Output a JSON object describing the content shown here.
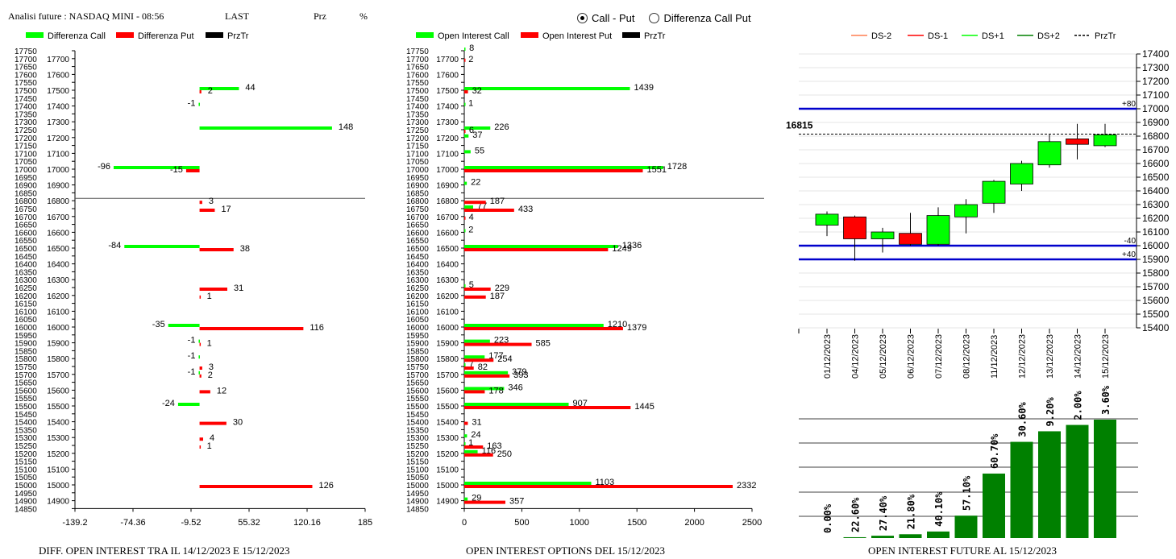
{
  "header": {
    "title": "Analisi future : NASDAQ MINI - 08:56",
    "last_label": "LAST",
    "prz_label": "Prz",
    "pct_label": "%"
  },
  "mode": {
    "options": [
      "Call - Put",
      "Differenza Call Put"
    ],
    "selected": 0
  },
  "colors": {
    "green": "#00ff00",
    "red": "#ff0000",
    "dark_green": "#008000",
    "blue": "#0000cc",
    "black": "#000000",
    "orange": "#ff7f50"
  },
  "chart_data": [
    {
      "type": "bar",
      "orientation": "horizontal",
      "title": "DIFF. OPEN INTEREST TRA IL 14/12/2023 E 15/12/2023",
      "legend": [
        "Differenza Call",
        "Differenza Put",
        "PrzTr"
      ],
      "strikes": [
        17750,
        17700,
        17650,
        17600,
        17550,
        17500,
        17450,
        17400,
        17350,
        17300,
        17250,
        17200,
        17150,
        17100,
        17050,
        17000,
        16950,
        16900,
        16850,
        16800,
        16750,
        16700,
        16650,
        16600,
        16550,
        16500,
        16450,
        16400,
        16350,
        16300,
        16250,
        16200,
        16150,
        16100,
        16050,
        16000,
        15950,
        15900,
        15850,
        15800,
        15750,
        15700,
        15650,
        15600,
        15550,
        15500,
        15450,
        15400,
        15350,
        15300,
        15250,
        15200,
        15150,
        15100,
        15050,
        15000,
        14950,
        14900,
        14850
      ],
      "xlim": [
        -139.2,
        185
      ],
      "xticks": [
        "-139.2",
        "-74.36",
        "-9.52",
        "55.32",
        "120.16",
        "185"
      ],
      "price_line": 16815,
      "series": [
        {
          "name": "Differenza Call",
          "color": "green",
          "points": [
            {
              "strike": 17500,
              "value": 44
            },
            {
              "strike": 17400,
              "value": -1
            },
            {
              "strike": 17250,
              "value": 148
            },
            {
              "strike": 17000,
              "value": -96
            },
            {
              "strike": 16500,
              "value": -84
            },
            {
              "strike": 16000,
              "value": -35
            },
            {
              "strike": 15900,
              "value": -1
            },
            {
              "strike": 15800,
              "value": -1
            },
            {
              "strike": 15700,
              "value": -1
            },
            {
              "strike": 15500,
              "value": -24
            }
          ]
        },
        {
          "name": "Differenza Put",
          "color": "red",
          "points": [
            {
              "strike": 17500,
              "value": 2
            },
            {
              "strike": 17000,
              "value": -15
            },
            {
              "strike": 16800,
              "value": 3
            },
            {
              "strike": 16750,
              "value": 17
            },
            {
              "strike": 16500,
              "value": 38
            },
            {
              "strike": 16250,
              "value": 31
            },
            {
              "strike": 16200,
              "value": 1
            },
            {
              "strike": 16000,
              "value": 116
            },
            {
              "strike": 15900,
              "value": 1
            },
            {
              "strike": 15750,
              "value": 3
            },
            {
              "strike": 15700,
              "value": 2
            },
            {
              "strike": 15600,
              "value": 12
            },
            {
              "strike": 15400,
              "value": 30
            },
            {
              "strike": 15300,
              "value": 4
            },
            {
              "strike": 15250,
              "value": 1
            },
            {
              "strike": 15000,
              "value": 126
            }
          ]
        }
      ]
    },
    {
      "type": "bar",
      "orientation": "horizontal",
      "title": "OPEN INTEREST OPTIONS DEL 15/12/2023",
      "legend": [
        "Open Interest Call",
        "Open Interest Put",
        "PrzTr"
      ],
      "xlim": [
        0,
        2500
      ],
      "xticks": [
        "0",
        "500",
        "1000",
        "1500",
        "2000",
        "2500"
      ],
      "price_line": 16815,
      "series": [
        {
          "name": "Open Interest Call",
          "color": "green",
          "points": [
            {
              "strike": 17750,
              "value": 8
            },
            {
              "strike": 17500,
              "value": 1439
            },
            {
              "strike": 17400,
              "value": 1
            },
            {
              "strike": 17250,
              "value": 226
            },
            {
              "strike": 17200,
              "value": 37
            },
            {
              "strike": 17100,
              "value": 55
            },
            {
              "strike": 17000,
              "value": 1728
            },
            {
              "strike": 16900,
              "value": 22
            },
            {
              "strike": 16750,
              "value": 77
            },
            {
              "strike": 16600,
              "value": 2
            },
            {
              "strike": 16500,
              "value": 1336
            },
            {
              "strike": 16250,
              "value": 5
            },
            {
              "strike": 16000,
              "value": 1210
            },
            {
              "strike": 15900,
              "value": 223
            },
            {
              "strike": 15800,
              "value": 177
            },
            {
              "strike": 15750,
              "value": 7
            },
            {
              "strike": 15700,
              "value": 379
            },
            {
              "strike": 15600,
              "value": 346
            },
            {
              "strike": 15500,
              "value": 907
            },
            {
              "strike": 15300,
              "value": 24
            },
            {
              "strike": 15250,
              "value": 1
            },
            {
              "strike": 15200,
              "value": 116
            },
            {
              "strike": 15000,
              "value": 1103
            },
            {
              "strike": 14900,
              "value": 29
            }
          ]
        },
        {
          "name": "Open Interest Put",
          "color": "red",
          "points": [
            {
              "strike": 17700,
              "value": 2
            },
            {
              "strike": 17500,
              "value": 32
            },
            {
              "strike": 17250,
              "value": 6
            },
            {
              "strike": 17000,
              "value": 1551
            },
            {
              "strike": 16800,
              "value": 187
            },
            {
              "strike": 16750,
              "value": 433
            },
            {
              "strike": 16700,
              "value": 4
            },
            {
              "strike": 16500,
              "value": 1249
            },
            {
              "strike": 16250,
              "value": 229
            },
            {
              "strike": 16200,
              "value": 187
            },
            {
              "strike": 16000,
              "value": 1379
            },
            {
              "strike": 15900,
              "value": 585
            },
            {
              "strike": 15800,
              "value": 254
            },
            {
              "strike": 15750,
              "value": 82
            },
            {
              "strike": 15700,
              "value": 393
            },
            {
              "strike": 15600,
              "value": 178
            },
            {
              "strike": 15500,
              "value": 1445
            },
            {
              "strike": 15400,
              "value": 31
            },
            {
              "strike": 15250,
              "value": 163
            },
            {
              "strike": 15200,
              "value": 250
            },
            {
              "strike": 15000,
              "value": 2332
            },
            {
              "strike": 14900,
              "value": 357
            }
          ]
        }
      ]
    },
    {
      "type": "candlestick",
      "legend": [
        "DS-2",
        "DS-1",
        "DS+1",
        "DS+2",
        "PrzTr"
      ],
      "ylim": [
        15400,
        17400
      ],
      "yticks": [
        "17400",
        "17300",
        "17200",
        "17100",
        "17000",
        "16900",
        "16800",
        "16700",
        "16600",
        "16500",
        "16400",
        "16300",
        "16200",
        "16100",
        "16000",
        "15900",
        "15800",
        "15700",
        "15600",
        "15500",
        "15400"
      ],
      "price_label": "16815",
      "price": 16815,
      "levels": [
        {
          "value": 17000,
          "label": "+80"
        },
        {
          "value": 16000,
          "label": "-40"
        },
        {
          "value": 15900,
          "label": "+40"
        }
      ],
      "dates": [
        "01/12/2023",
        "04/12/2023",
        "05/12/2023",
        "06/12/2023",
        "07/12/2023",
        "08/12/2023",
        "11/12/2023",
        "12/12/2023",
        "13/12/2023",
        "14/12/2023",
        "15/12/2023"
      ],
      "candles": [
        {
          "o": 16150,
          "h": 16250,
          "l": 16070,
          "c": 16230
        },
        {
          "o": 16210,
          "h": 16220,
          "l": 15890,
          "c": 16050
        },
        {
          "o": 16050,
          "h": 16130,
          "l": 15950,
          "c": 16100
        },
        {
          "o": 16090,
          "h": 16240,
          "l": 16000,
          "c": 16010
        },
        {
          "o": 16010,
          "h": 16280,
          "l": 16000,
          "c": 16220
        },
        {
          "o": 16210,
          "h": 16340,
          "l": 16090,
          "c": 16300
        },
        {
          "o": 16310,
          "h": 16480,
          "l": 16240,
          "c": 16470
        },
        {
          "o": 16450,
          "h": 16620,
          "l": 16400,
          "c": 16600
        },
        {
          "o": 16590,
          "h": 16810,
          "l": 16570,
          "c": 16760
        },
        {
          "o": 16780,
          "h": 16890,
          "l": 16630,
          "c": 16740
        },
        {
          "o": 16730,
          "h": 16890,
          "l": 16720,
          "c": 16810
        }
      ]
    },
    {
      "type": "bar",
      "title": "OPEN INTEREST FUTURE AL 15/12/2023",
      "labels": [
        "0.00%",
        "22.60%",
        "27.40%",
        "21.80%",
        "40.10%",
        "57.10%",
        "60.70%",
        "30.60%",
        "9.20%",
        "2.00%",
        "3.60%"
      ],
      "values": [
        0,
        0.4,
        1.1,
        1.8,
        3.1,
        10.6,
        30.5,
        45.5,
        50.5,
        53.5,
        56.0
      ]
    }
  ]
}
